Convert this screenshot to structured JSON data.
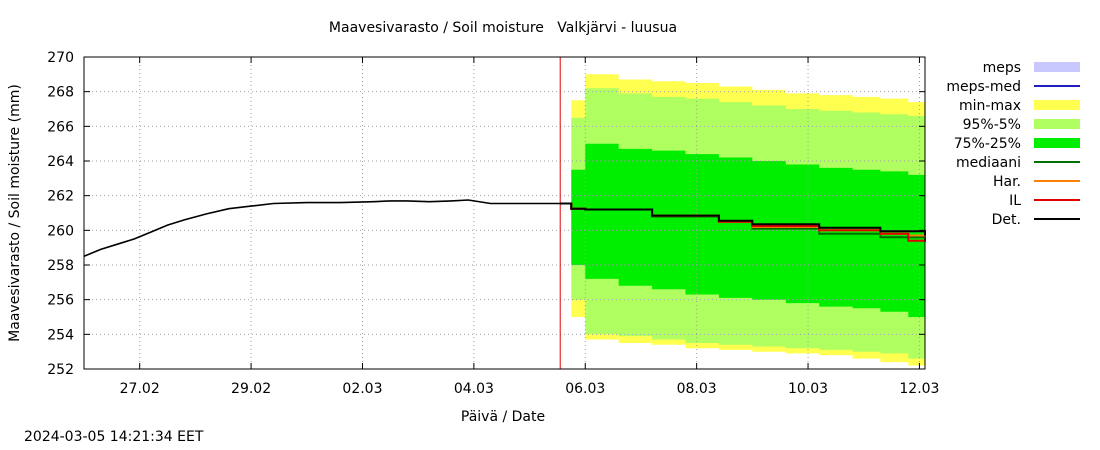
{
  "chart_data": {
    "type": "area",
    "title": "Maavesivarasto / Soil moisture   Valkjärvi - luusua",
    "xlabel": "Päivä / Date",
    "ylabel": "Maavesivarasto / Soil moisture (mm)",
    "ylim": [
      252,
      270
    ],
    "yticks": [
      252,
      254,
      256,
      258,
      260,
      262,
      264,
      266,
      268,
      270
    ],
    "xlim_days": [
      0,
      15.1
    ],
    "xticks": [
      {
        "label": "27.02",
        "day": 1.0
      },
      {
        "label": "29.02",
        "day": 3.0
      },
      {
        "label": "02.03",
        "day": 5.0
      },
      {
        "label": "04.03",
        "day": 7.0
      },
      {
        "label": "06.03",
        "day": 9.0
      },
      {
        "label": "08.03",
        "day": 11.0
      },
      {
        "label": "10.03",
        "day": 13.0
      },
      {
        "label": "12.03",
        "day": 15.0
      }
    ],
    "grid": true,
    "forecast_start_day": 8.55,
    "legend_position": "right",
    "legend": [
      {
        "key": "meps",
        "label": "meps",
        "kind": "fill",
        "color": "#c8c8ff"
      },
      {
        "key": "meps_med",
        "label": "meps-med",
        "kind": "line",
        "color": "#2020c0"
      },
      {
        "key": "minmax",
        "label": "min-max",
        "kind": "fill",
        "color": "#ffff50"
      },
      {
        "key": "p95_5",
        "label": "95%-5%",
        "kind": "fill",
        "color": "#b0ff60"
      },
      {
        "key": "p75_25",
        "label": "75%-25%",
        "kind": "fill",
        "color": "#00ee00"
      },
      {
        "key": "mediaani",
        "label": "mediaani",
        "kind": "line",
        "color": "#007000"
      },
      {
        "key": "har",
        "label": "Har.",
        "kind": "line",
        "color": "#ff8000"
      },
      {
        "key": "il",
        "label": "IL",
        "kind": "line",
        "color": "#e00000"
      },
      {
        "key": "det",
        "label": "Det.",
        "kind": "line",
        "color": "#000000"
      }
    ],
    "observed": {
      "x": [
        0.0,
        0.3,
        0.6,
        0.9,
        1.2,
        1.5,
        1.8,
        2.2,
        2.6,
        3.0,
        3.4,
        4.0,
        4.6,
        5.2,
        5.5,
        5.8,
        6.2,
        6.6,
        6.9,
        7.3,
        7.8,
        8.3,
        8.6
      ],
      "y": [
        258.5,
        258.9,
        259.2,
        259.5,
        259.9,
        260.3,
        260.6,
        260.95,
        261.25,
        261.4,
        261.55,
        261.6,
        261.6,
        261.65,
        261.7,
        261.7,
        261.65,
        261.7,
        261.75,
        261.55,
        261.55,
        261.55,
        261.55
      ]
    },
    "forecast": {
      "x": [
        8.55,
        8.75,
        9.0,
        9.6,
        10.2,
        10.8,
        11.4,
        12.0,
        12.6,
        13.2,
        13.8,
        14.3,
        14.8,
        15.1
      ],
      "minmax_upper": [
        261.6,
        267.5,
        269.0,
        268.7,
        268.6,
        268.5,
        268.3,
        268.1,
        267.9,
        267.8,
        267.7,
        267.6,
        267.4,
        267.3
      ],
      "minmax_lower": [
        261.6,
        255.0,
        253.7,
        253.5,
        253.4,
        253.2,
        253.1,
        253.0,
        252.9,
        252.8,
        252.6,
        252.4,
        252.2,
        252.1
      ],
      "p95_upper": [
        261.6,
        266.5,
        268.2,
        267.9,
        267.7,
        267.6,
        267.4,
        267.2,
        267.0,
        266.9,
        266.8,
        266.7,
        266.6,
        266.4
      ],
      "p95_lower": [
        261.6,
        256.0,
        254.0,
        253.9,
        253.7,
        253.5,
        253.4,
        253.3,
        253.2,
        253.1,
        253.0,
        252.9,
        252.6,
        252.4
      ],
      "p75_upper": [
        261.6,
        263.5,
        265.0,
        264.7,
        264.6,
        264.4,
        264.2,
        264.0,
        263.8,
        263.6,
        263.5,
        263.4,
        263.2,
        263.1
      ],
      "p75_lower": [
        261.6,
        258.0,
        257.2,
        256.8,
        256.6,
        256.3,
        256.1,
        256.0,
        255.8,
        255.6,
        255.5,
        255.3,
        255.0,
        254.9
      ],
      "mediaani": [
        261.55,
        261.25,
        261.2,
        261.2,
        260.8,
        260.8,
        260.5,
        260.1,
        260.1,
        259.8,
        259.8,
        259.6,
        259.6,
        259.4
      ],
      "har": [
        261.55,
        261.25,
        261.2,
        261.2,
        260.85,
        260.85,
        260.5,
        260.2,
        260.2,
        260.0,
        260.0,
        259.8,
        259.7,
        259.6
      ],
      "il": [
        261.55,
        261.25,
        261.2,
        261.2,
        260.85,
        260.85,
        260.5,
        260.25,
        260.25,
        260.0,
        260.0,
        259.8,
        259.4,
        259.35
      ],
      "det": [
        261.55,
        261.25,
        261.2,
        261.2,
        260.85,
        260.85,
        260.55,
        260.35,
        260.35,
        260.15,
        260.15,
        259.95,
        259.95,
        259.7
      ]
    }
  },
  "timestamp": "2024-03-05 14:21:34 EET"
}
